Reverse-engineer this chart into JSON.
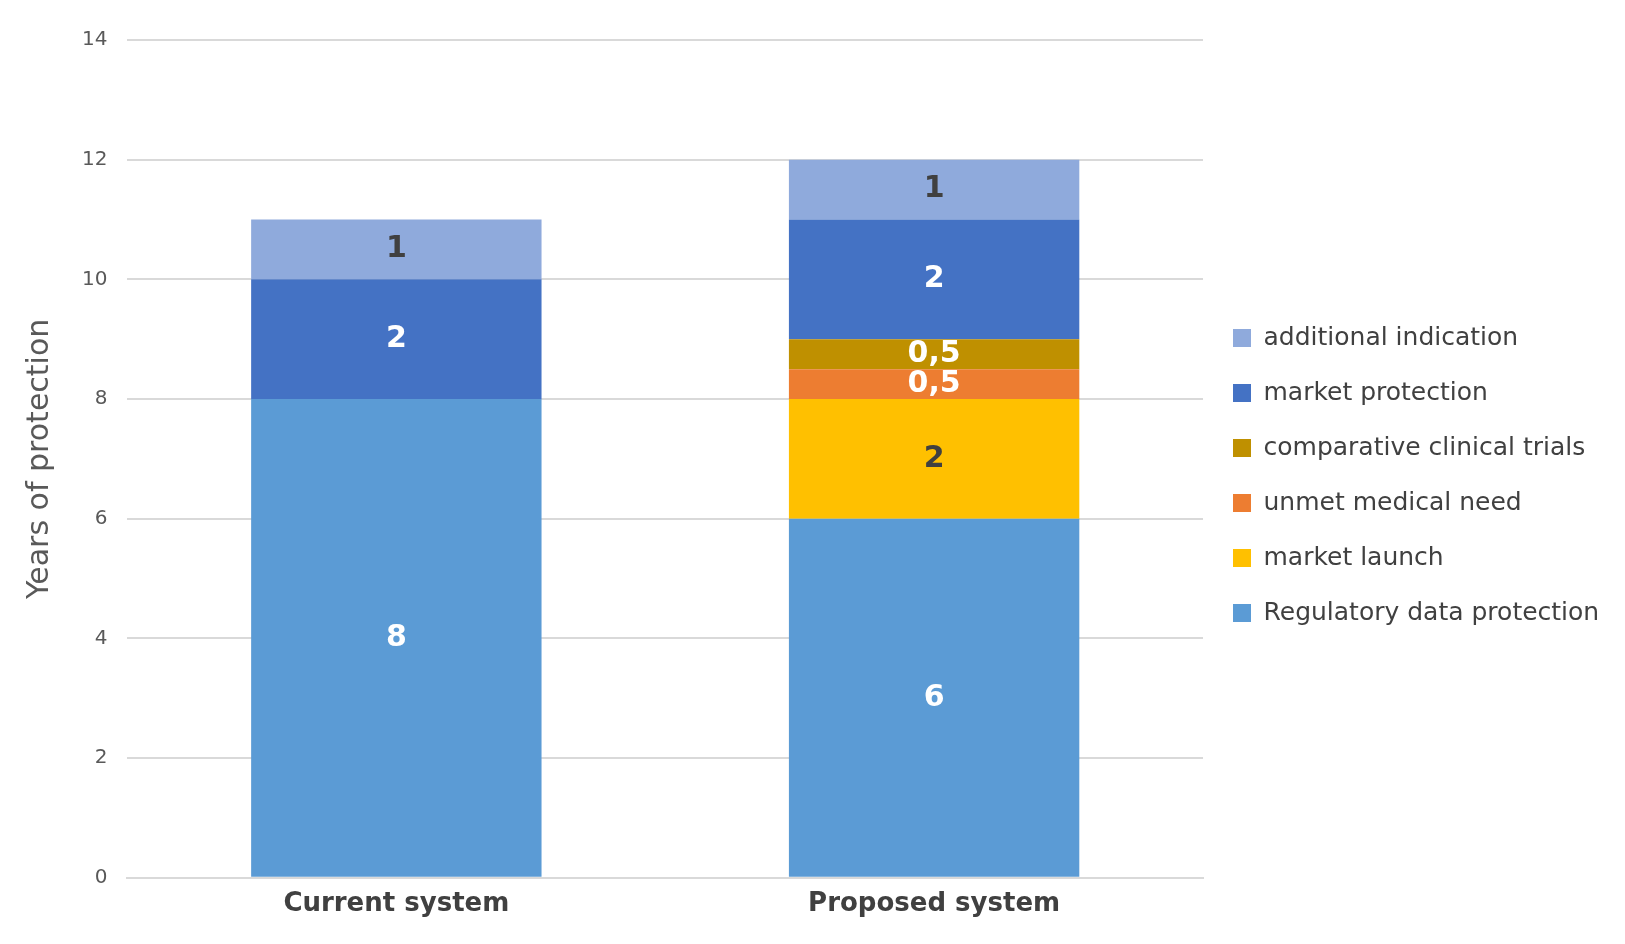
{
  "chart_data": {
    "type": "bar",
    "stacked": true,
    "ylabel": "Years of protection",
    "categories": [
      "Current system",
      "Proposed system"
    ],
    "ylim": [
      0,
      14
    ],
    "yticks": [
      0,
      2,
      4,
      6,
      8,
      10,
      12,
      14
    ],
    "grid": "y",
    "legend": "right",
    "series": [
      {
        "name": "Regulatory data protection",
        "color": "#5b9bd5",
        "values": [
          8,
          6
        ],
        "value_labels": [
          "8",
          "6"
        ]
      },
      {
        "name": "market launch",
        "color": "#ffc000",
        "values": [
          null,
          2
        ],
        "value_labels": [
          null,
          "2"
        ]
      },
      {
        "name": "unmet medical need",
        "color": "#ed7d31",
        "values": [
          null,
          0.5
        ],
        "value_labels": [
          null,
          "0,5"
        ]
      },
      {
        "name": "comparative clinical trials",
        "color": "#bf9000",
        "values": [
          null,
          0.5
        ],
        "value_labels": [
          null,
          "0,5"
        ]
      },
      {
        "name": "market protection",
        "color": "#4472c4",
        "values": [
          2,
          2
        ],
        "value_labels": [
          "2",
          "2"
        ]
      },
      {
        "name": "additional indication",
        "color": "#8faadc",
        "values": [
          1,
          1
        ],
        "value_labels": [
          "1",
          "1"
        ]
      }
    ]
  }
}
